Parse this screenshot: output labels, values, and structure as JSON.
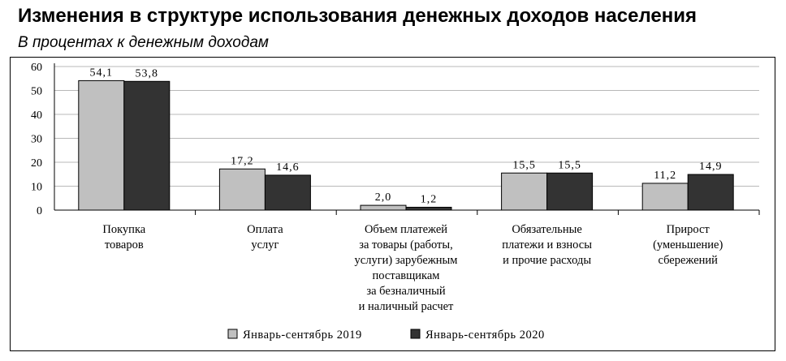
{
  "header": {
    "title": "Изменения в структуре использования денежных доходов населения",
    "subtitle": "В процентах к денежным доходам"
  },
  "chart_data": {
    "type": "bar",
    "title": "Изменения в структуре использования денежных доходов населения",
    "subtitle": "В процентах к денежным доходам",
    "xlabel": "",
    "ylabel": "",
    "ylim": [
      0,
      60
    ],
    "yticks": [
      "0",
      "10",
      "20",
      "30",
      "40",
      "50",
      "60"
    ],
    "grid": true,
    "legend_position": "bottom",
    "categories": [
      [
        "Покупка",
        "товаров"
      ],
      [
        "Оплата",
        "услуг"
      ],
      [
        "Объем платежей",
        "за товары (работы,",
        "услуги) зарубежным",
        "поставщикам",
        "за безналичный",
        "и наличный расчет"
      ],
      [
        "Обязательные",
        "платежи и взносы",
        "и прочие расходы"
      ],
      [
        "Прирост",
        "(уменьшение)",
        "сбережений"
      ]
    ],
    "series": [
      {
        "name": "Январь-сентябрь 2019",
        "color": "#c0c0c0",
        "values": [
          54.1,
          17.2,
          2.0,
          15.5,
          11.2
        ],
        "labels": [
          "54,1",
          "17,2",
          "2,0",
          "15,5",
          "11,2"
        ]
      },
      {
        "name": "Январь-сентябрь 2020",
        "color": "#333333",
        "values": [
          53.8,
          14.6,
          1.2,
          15.5,
          14.9
        ],
        "labels": [
          "53,8",
          "14,6",
          "1,2",
          "15,5",
          "14,9"
        ]
      }
    ]
  }
}
